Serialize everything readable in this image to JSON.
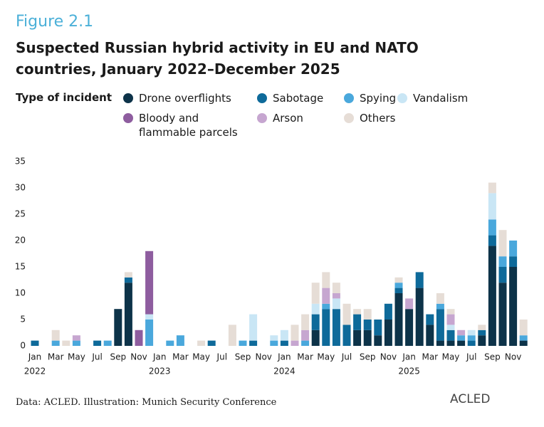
{
  "figure_label": "Figure 2.1",
  "source": "Data: ACLED. Illustration: Munich Security Conference",
  "logo": "ACLED",
  "chart_data": {
    "type": "stacked-bar",
    "title": "Suspected Russian hybrid activity in EU and NATO countries, January 2022–December 2025",
    "legend_title": "Type of incident",
    "categories": [
      "Jan",
      null,
      "Mar",
      null,
      "May",
      null,
      "Jul",
      null,
      "Sep",
      null,
      "Nov",
      null,
      "Jan",
      null,
      "Mar",
      null,
      "May",
      null,
      "Jul",
      null,
      "Sep",
      null,
      "Nov",
      null,
      "Jan",
      null,
      "Mar",
      null,
      "May",
      null,
      "Jul",
      null,
      "Sep",
      null,
      "Nov",
      null,
      "Jan",
      null,
      "Mar",
      null,
      "May",
      null,
      "Jul",
      null,
      "Sep",
      null,
      "Nov",
      null
    ],
    "year_labels": [
      "2022",
      "2023",
      "2024",
      "2025"
    ],
    "ylim": [
      0,
      35
    ],
    "yticks": [
      0,
      5,
      10,
      15,
      20,
      25,
      30,
      35
    ],
    "grid": false,
    "series": [
      {
        "name": "Drone overflights",
        "color": "#0d3349",
        "values": [
          0,
          0,
          0,
          0,
          0,
          0,
          0,
          0,
          7,
          12,
          0,
          0,
          0,
          0,
          0,
          0,
          0,
          0,
          0,
          0,
          0,
          0,
          0,
          0,
          0,
          0,
          0,
          3,
          0,
          0,
          0,
          3,
          3,
          2,
          5,
          10,
          7,
          11,
          4,
          1,
          1,
          1,
          0,
          2,
          19,
          12,
          15,
          1
        ]
      },
      {
        "name": "Sabotage",
        "color": "#0e6a9a",
        "values": [
          1,
          0,
          0,
          0,
          0,
          0,
          1,
          0,
          0,
          1,
          0,
          0,
          0,
          0,
          0,
          0,
          0,
          1,
          0,
          0,
          0,
          1,
          0,
          0,
          1,
          0,
          0,
          3,
          7,
          7,
          4,
          3,
          2,
          3,
          3,
          1,
          0,
          3,
          2,
          6,
          2,
          0,
          1,
          1,
          2,
          3,
          2,
          0
        ]
      },
      {
        "name": "Spying",
        "color": "#4aa8dc",
        "values": [
          0,
          0,
          1,
          0,
          1,
          0,
          0,
          1,
          0,
          0,
          0,
          5,
          0,
          1,
          2,
          0,
          0,
          0,
          0,
          0,
          1,
          0,
          0,
          1,
          0,
          0,
          1,
          0,
          1,
          0,
          0,
          0,
          0,
          0,
          0,
          1,
          0,
          0,
          0,
          1,
          0,
          1,
          1,
          0,
          3,
          2,
          3,
          1
        ]
      },
      {
        "name": "Vandalism",
        "color": "#c9e6f5",
        "values": [
          0,
          0,
          0,
          0,
          0,
          0,
          0,
          0,
          0,
          0,
          0,
          1,
          0,
          0,
          0,
          0,
          0,
          0,
          0,
          0,
          0,
          5,
          0,
          1,
          2,
          0,
          0,
          2,
          0,
          2,
          0,
          0,
          0,
          0,
          0,
          0,
          0,
          0,
          0,
          0,
          1,
          0,
          1,
          0,
          5,
          0,
          0,
          0
        ]
      },
      {
        "name": "Bloody and flammable parcels",
        "color": "#8e5d9f",
        "values": [
          0,
          0,
          0,
          0,
          0,
          0,
          0,
          0,
          0,
          0,
          3,
          12,
          0,
          0,
          0,
          0,
          0,
          0,
          0,
          0,
          0,
          0,
          0,
          0,
          0,
          0,
          0,
          0,
          0,
          0,
          0,
          0,
          0,
          0,
          0,
          0,
          0,
          0,
          0,
          0,
          0,
          0,
          0,
          0,
          0,
          0,
          0,
          0
        ]
      },
      {
        "name": "Arson",
        "color": "#c6a6d0",
        "values": [
          0,
          0,
          0,
          0,
          1,
          0,
          0,
          0,
          0,
          0,
          0,
          0,
          0,
          0,
          0,
          0,
          0,
          0,
          0,
          0,
          0,
          0,
          0,
          0,
          0,
          1,
          2,
          0,
          3,
          1,
          0,
          0,
          0,
          0,
          0,
          0,
          2,
          0,
          0,
          0,
          2,
          1,
          0,
          0,
          0,
          0,
          0,
          0
        ]
      },
      {
        "name": "Others",
        "color": "#e6ddd6",
        "values": [
          0,
          0,
          2,
          1,
          0,
          0,
          0,
          0,
          0,
          1,
          0,
          0,
          0,
          0,
          0,
          0,
          1,
          0,
          0,
          4,
          0,
          0,
          0,
          0,
          0,
          3,
          3,
          4,
          3,
          2,
          4,
          1,
          2,
          0,
          0,
          1,
          0,
          0,
          0,
          2,
          1,
          0,
          0,
          1,
          2,
          5,
          0,
          3
        ]
      }
    ]
  }
}
